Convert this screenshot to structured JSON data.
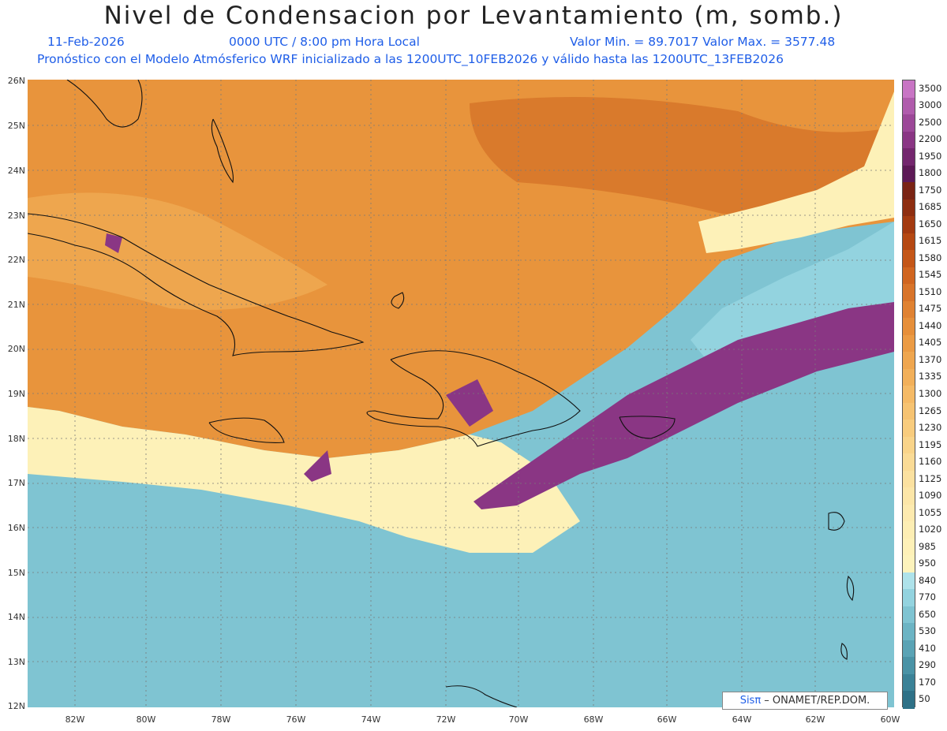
{
  "title": "Nivel de Condensacion por Levantamiento (m, somb.)",
  "header": {
    "date": "11-Feb-2026",
    "time": "0000 UTC / 8:00 pm Hora Local",
    "minmax": "Valor Min. = 89.7017   Valor Max. = 3577.48",
    "forecast": "Pronóstico con el Modelo Atmósferico WRF inicializado a las 1200UTC_10FEB2026 y válido hasta las  1200UTC_13FEB2026"
  },
  "axes": {
    "lat_labels": [
      "26N",
      "25N",
      "24N",
      "23N",
      "22N",
      "21N",
      "20N",
      "19N",
      "18N",
      "17N",
      "16N",
      "15N",
      "14N",
      "13N",
      "12N"
    ],
    "lon_labels": [
      "82W",
      "80W",
      "78W",
      "76W",
      "74W",
      "72W",
      "70W",
      "68W",
      "66W",
      "64W",
      "62W",
      "60W"
    ]
  },
  "legend": {
    "levels": [
      "3500",
      "3000",
      "2500",
      "2200",
      "1950",
      "1800",
      "1750",
      "1685",
      "1650",
      "1615",
      "1580",
      "1545",
      "1510",
      "1475",
      "1440",
      "1405",
      "1370",
      "1335",
      "1300",
      "1265",
      "1230",
      "1195",
      "1160",
      "1125",
      "1090",
      "1055",
      "1020",
      "985",
      "950",
      "840",
      "770",
      "650",
      "530",
      "410",
      "290",
      "170",
      "50"
    ],
    "colors": [
      "#c875c4",
      "#b05cac",
      "#9c4898",
      "#8a3684",
      "#74276e",
      "#5d1a56",
      "#7a2414",
      "#8e2e10",
      "#a33a10",
      "#b54812",
      "#c45618",
      "#d06520",
      "#d8742a",
      "#e08232",
      "#e68f3a",
      "#eb9b44",
      "#efa64f",
      "#f2b05a",
      "#f5ba66",
      "#f6c372",
      "#f8cc7e",
      "#f9d48a",
      "#fadb96",
      "#fbe1a0",
      "#fce6a8",
      "#fdeaaf",
      "#fdeeb4",
      "#fef1b8",
      "#fdf3bc",
      "#aee2ea",
      "#93d3df",
      "#7fc4d2",
      "#6cb4c4",
      "#5aa3b5",
      "#4a93a6",
      "#3b8297",
      "#2e7187"
    ]
  },
  "credit": {
    "logo": "Sisπ",
    "text": " – ONAMET/REP.DOM."
  }
}
